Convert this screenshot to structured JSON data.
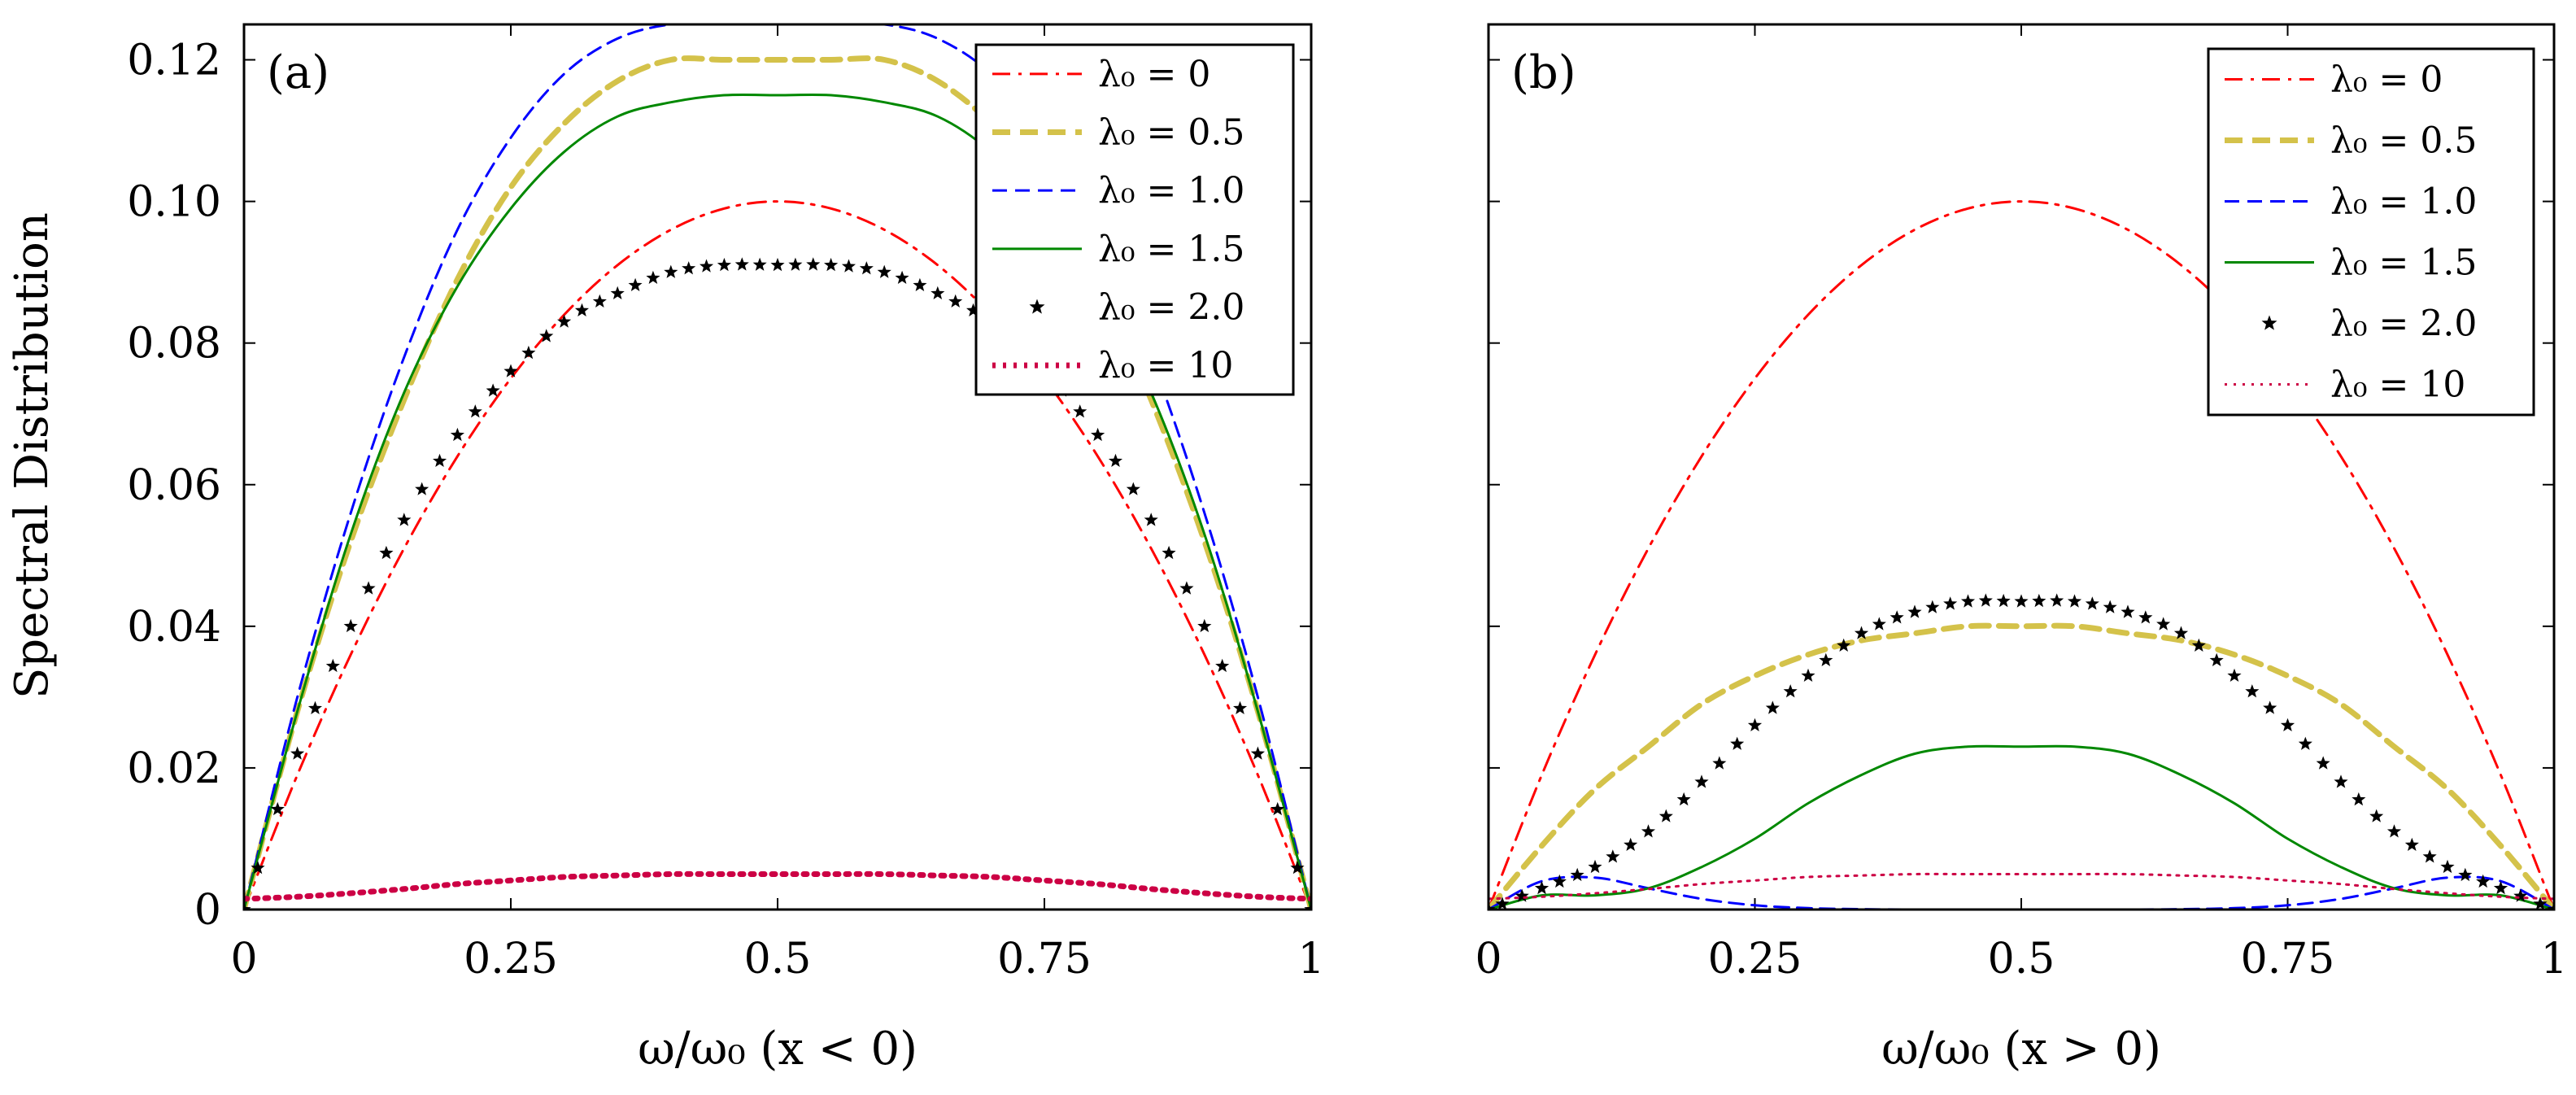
{
  "ylabel": "Spectral Distribution",
  "chart_data": [
    {
      "type": "line",
      "panel_label": "(a)",
      "xlabel": "ω/ω₀ (x < 0)",
      "ylabel": "Spectral Distribution",
      "xlim": [
        0,
        1
      ],
      "ylim": [
        0,
        0.125
      ],
      "xticks": [
        0,
        0.25,
        0.5,
        0.75,
        1
      ],
      "xtick_labels": [
        "0",
        "0.25",
        "0.5",
        "0.75",
        "1"
      ],
      "yticks": [
        0,
        0.02,
        0.04,
        0.06,
        0.08,
        0.1,
        0.12
      ],
      "ytick_labels": [
        "0",
        "0.02",
        "0.04",
        "0.06",
        "0.08",
        "0.10",
        "0.12"
      ],
      "legend_position": "top-right",
      "x": [
        0,
        0.05,
        0.1,
        0.15,
        0.2,
        0.25,
        0.3,
        0.35,
        0.4,
        0.45,
        0.5,
        0.55,
        0.6,
        0.65,
        0.7,
        0.75,
        0.8,
        0.85,
        0.9,
        0.95,
        1
      ],
      "series": [
        {
          "name": "λ₀ = 0",
          "color": "#ff0000",
          "style": "dashdot",
          "values": [
            0,
            0.019,
            0.036,
            0.051,
            0.064,
            0.075,
            0.084,
            0.091,
            0.096,
            0.099,
            0.1,
            0.099,
            0.096,
            0.091,
            0.084,
            0.075,
            0.064,
            0.051,
            0.036,
            0.019,
            0
          ]
        },
        {
          "name": "λ₀ = 0.5",
          "color": "#d4c24a",
          "style": "dashed-thick",
          "values": [
            0,
            0.028,
            0.052,
            0.072,
            0.089,
            0.102,
            0.111,
            0.117,
            0.12,
            0.12,
            0.12,
            0.12,
            0.12,
            0.117,
            0.111,
            0.102,
            0.089,
            0.072,
            0.052,
            0.028,
            0
          ]
        },
        {
          "name": "λ₀ = 1.0",
          "color": "#0000ff",
          "style": "dashed",
          "values": [
            0,
            0.03,
            0.056,
            0.078,
            0.096,
            0.109,
            0.118,
            0.123,
            0.125,
            0.125,
            0.125,
            0.125,
            0.125,
            0.123,
            0.118,
            0.109,
            0.096,
            0.078,
            0.056,
            0.03,
            0
          ]
        },
        {
          "name": "λ₀ = 1.5",
          "color": "#008800",
          "style": "solid",
          "values": [
            0,
            0.028,
            0.053,
            0.073,
            0.088,
            0.099,
            0.107,
            0.112,
            0.114,
            0.115,
            0.115,
            0.115,
            0.114,
            0.112,
            0.107,
            0.099,
            0.088,
            0.073,
            0.053,
            0.028,
            0
          ]
        },
        {
          "name": "λ₀ = 2.0",
          "color": "#000000",
          "style": "stars",
          "values": [
            0,
            0.022,
            0.04,
            0.055,
            0.067,
            0.076,
            0.083,
            0.087,
            0.09,
            0.091,
            0.091,
            0.091,
            0.09,
            0.087,
            0.083,
            0.076,
            0.067,
            0.055,
            0.04,
            0.022,
            0
          ]
        },
        {
          "name": "λ₀ = 10",
          "color": "#cc0044",
          "style": "dotted-thick",
          "values": [
            0.0015,
            0.0018,
            0.0023,
            0.0029,
            0.0036,
            0.0041,
            0.0046,
            0.0048,
            0.005,
            0.005,
            0.005,
            0.005,
            0.005,
            0.0048,
            0.0046,
            0.0041,
            0.0036,
            0.0029,
            0.0023,
            0.0018,
            0.0015
          ]
        }
      ]
    },
    {
      "type": "line",
      "panel_label": "(b)",
      "xlabel": "ω/ω₀ (x > 0)",
      "ylabel": "",
      "xlim": [
        0,
        1
      ],
      "ylim": [
        0,
        0.125
      ],
      "xticks": [
        0,
        0.25,
        0.5,
        0.75,
        1
      ],
      "xtick_labels": [
        "0",
        "0.25",
        "0.5",
        "0.75",
        "1"
      ],
      "yticks": [
        0,
        0.02,
        0.04,
        0.06,
        0.08,
        0.1,
        0.12
      ],
      "ytick_labels": [],
      "legend_position": "top-right",
      "x": [
        0,
        0.05,
        0.1,
        0.15,
        0.2,
        0.25,
        0.3,
        0.35,
        0.4,
        0.45,
        0.5,
        0.55,
        0.6,
        0.65,
        0.7,
        0.75,
        0.8,
        0.85,
        0.9,
        0.95,
        1
      ],
      "series": [
        {
          "name": "λ₀ = 0",
          "color": "#ff0000",
          "style": "dashdot",
          "values": [
            0,
            0.019,
            0.036,
            0.051,
            0.064,
            0.075,
            0.084,
            0.091,
            0.096,
            0.099,
            0.1,
            0.099,
            0.096,
            0.091,
            0.084,
            0.075,
            0.064,
            0.051,
            0.036,
            0.019,
            0
          ]
        },
        {
          "name": "λ₀ = 0.5",
          "color": "#d4c24a",
          "style": "dashed-thick",
          "values": [
            0,
            0.009,
            0.017,
            0.023,
            0.029,
            0.033,
            0.036,
            0.038,
            0.039,
            0.04,
            0.04,
            0.04,
            0.039,
            0.038,
            0.036,
            0.033,
            0.029,
            0.023,
            0.017,
            0.009,
            0
          ]
        },
        {
          "name": "λ₀ = 1.0",
          "color": "#0000ff",
          "style": "dashed",
          "values": [
            0,
            0.004,
            0.0045,
            0.003,
            0.0015,
            0.0006,
            0.0002,
            5e-05,
            0.0,
            0.0,
            0.0,
            0.0,
            0.0,
            5e-05,
            0.0002,
            0.0006,
            0.0015,
            0.003,
            0.0045,
            0.004,
            0
          ]
        },
        {
          "name": "λ₀ = 1.5",
          "color": "#008800",
          "style": "solid",
          "values": [
            0,
            0.002,
            0.002,
            0.003,
            0.006,
            0.01,
            0.015,
            0.019,
            0.022,
            0.023,
            0.023,
            0.023,
            0.022,
            0.019,
            0.015,
            0.01,
            0.006,
            0.003,
            0.002,
            0.002,
            0
          ]
        },
        {
          "name": "λ₀ = 2.0",
          "color": "#000000",
          "style": "stars",
          "values": [
            0,
            0.003,
            0.006,
            0.011,
            0.018,
            0.026,
            0.033,
            0.039,
            0.042,
            0.0435,
            0.0435,
            0.0435,
            0.042,
            0.039,
            0.033,
            0.026,
            0.018,
            0.011,
            0.006,
            0.003,
            0
          ]
        },
        {
          "name": "λ₀ = 10",
          "color": "#cc0044",
          "style": "dotted",
          "values": [
            0.0015,
            0.0018,
            0.0023,
            0.0029,
            0.0036,
            0.0041,
            0.0046,
            0.0048,
            0.005,
            0.005,
            0.005,
            0.005,
            0.005,
            0.0048,
            0.0046,
            0.0041,
            0.0036,
            0.0029,
            0.0023,
            0.0018,
            0.0015
          ]
        }
      ]
    }
  ]
}
